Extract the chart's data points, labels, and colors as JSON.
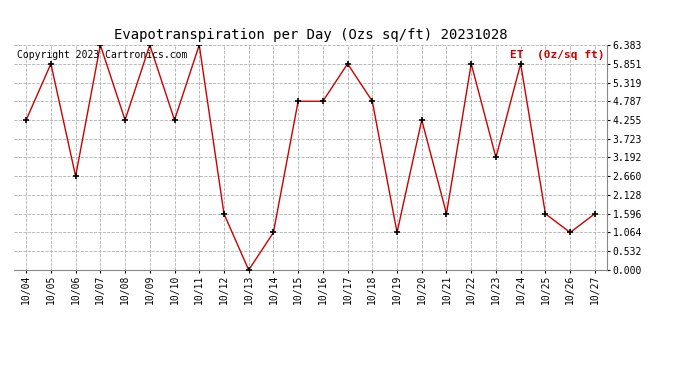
{
  "title": "Evapotranspiration per Day (Ozs sq/ft) 20231028",
  "copyright_text": "Copyright 2023 Cartronics.com",
  "legend_label": "ET  (0z/sq ft)",
  "dates": [
    "10/04",
    "10/05",
    "10/06",
    "10/07",
    "10/08",
    "10/09",
    "10/10",
    "10/11",
    "10/12",
    "10/13",
    "10/14",
    "10/15",
    "10/16",
    "10/17",
    "10/18",
    "10/19",
    "10/20",
    "10/21",
    "10/22",
    "10/23",
    "10/24",
    "10/25",
    "10/26",
    "10/27"
  ],
  "values": [
    4.255,
    5.851,
    2.66,
    6.383,
    4.255,
    6.383,
    4.255,
    6.383,
    1.596,
    0.0,
    1.064,
    4.787,
    4.787,
    5.851,
    4.787,
    1.064,
    4.255,
    1.596,
    5.851,
    3.192,
    5.851,
    1.596,
    1.064,
    1.596
  ],
  "ylim": [
    0.0,
    6.383
  ],
  "yticks": [
    0.0,
    0.532,
    1.064,
    1.596,
    2.128,
    2.66,
    3.192,
    3.723,
    4.255,
    4.787,
    5.319,
    5.851,
    6.383
  ],
  "line_color": "#cc0000",
  "marker_color": "#000000",
  "title_color": "#000000",
  "copyright_color": "#000000",
  "legend_color": "#cc0000",
  "background_color": "#ffffff",
  "grid_color": "#b0b0b0",
  "title_fontsize": 10,
  "axis_fontsize": 7,
  "copyright_fontsize": 7,
  "legend_fontsize": 8
}
